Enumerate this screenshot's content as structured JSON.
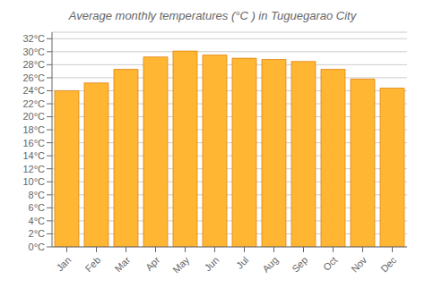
{
  "chart_data": {
    "type": "bar",
    "title": "Average monthly temperatures (°C ) in Tuguegarao City",
    "categories": [
      "Jan",
      "Feb",
      "Mar",
      "Apr",
      "May",
      "Jun",
      "Jul",
      "Aug",
      "Sep",
      "Oct",
      "Nov",
      "Dec"
    ],
    "values": [
      24.0,
      25.2,
      27.3,
      29.2,
      30.1,
      29.5,
      29.0,
      28.8,
      28.5,
      27.3,
      25.8,
      24.4
    ],
    "color": "#FFB733",
    "ylim": [
      0,
      33
    ],
    "yticks": [
      {
        "value": 0,
        "label": "0°C"
      },
      {
        "value": 2,
        "label": "2°C"
      },
      {
        "value": 4,
        "label": "4°C"
      },
      {
        "value": 6,
        "label": "6°C"
      },
      {
        "value": 8,
        "label": "8°C"
      },
      {
        "value": 10,
        "label": "10°C"
      },
      {
        "value": 12,
        "label": "12°C"
      },
      {
        "value": 14,
        "label": "14°C"
      },
      {
        "value": 16,
        "label": "16°C"
      },
      {
        "value": 18,
        "label": "18°C"
      },
      {
        "value": 20,
        "label": "20°C"
      },
      {
        "value": 22,
        "label": "22°C"
      },
      {
        "value": 24,
        "label": "24°C"
      },
      {
        "value": 26,
        "label": "26°C"
      },
      {
        "value": 28,
        "label": "28°C"
      },
      {
        "value": 30,
        "label": "30°C"
      },
      {
        "value": 32,
        "label": "32°C"
      }
    ],
    "grid": true
  }
}
